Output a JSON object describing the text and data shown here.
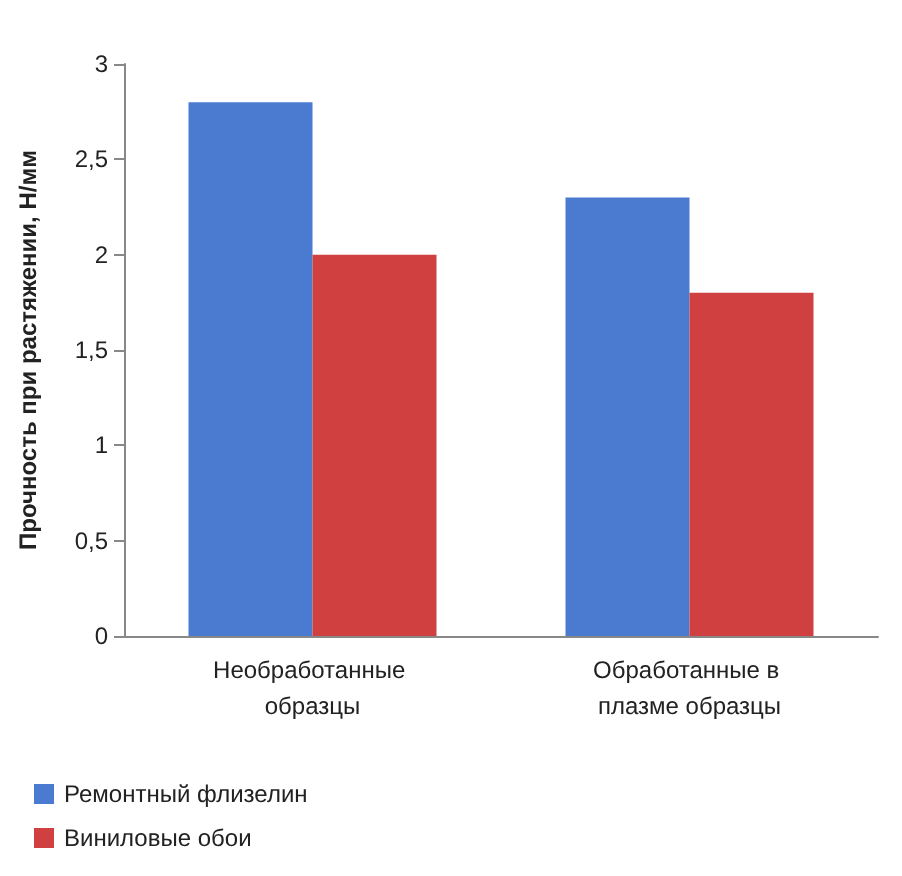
{
  "chart_data": {
    "type": "bar",
    "ylabel": "Прочность при растяжении, Н/мм",
    "categories": [
      "Необработанные образцы",
      "Обработанные в плазме образцы"
    ],
    "series": [
      {
        "name": "Ремонтный флизелин",
        "color": "#4a7bd0",
        "values": [
          2.8,
          2.3
        ]
      },
      {
        "name": "Виниловые обои",
        "color": "#d04040",
        "values": [
          2.0,
          1.8
        ]
      }
    ],
    "ylim": [
      0,
      3
    ],
    "yticks": [
      0,
      {
        "value": 0.5,
        "label": "0,5"
      },
      1,
      {
        "value": 1.5,
        "label": "1,5"
      },
      2,
      {
        "value": 2.5,
        "label": "2,5"
      },
      3
    ],
    "grid": false,
    "legend": "bottom left"
  }
}
